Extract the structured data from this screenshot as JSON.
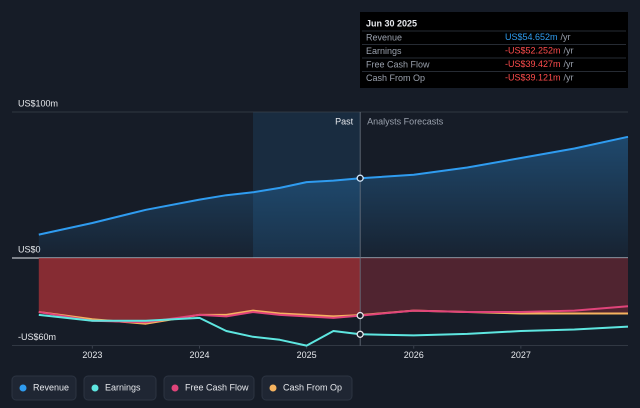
{
  "chart_data": {
    "type": "line",
    "x": [
      2022.5,
      2023,
      2023.5,
      2024,
      2024.25,
      2024.5,
      2024.75,
      2025,
      2025.25,
      2025.5,
      2026,
      2026.5,
      2027,
      2027.5,
      2028
    ],
    "series": [
      {
        "name": "Revenue",
        "color": "#2f9cf0",
        "values": [
          16,
          24,
          33,
          40,
          43,
          45,
          48,
          52,
          53,
          54.652,
          57,
          62,
          68.5,
          75,
          83
        ]
      },
      {
        "name": "Earnings",
        "color": "#5ee6e0",
        "values": [
          -39,
          -43,
          -43,
          -41,
          -50,
          -54,
          -56,
          -60,
          -50,
          -52.252,
          -53,
          -52,
          -50,
          -49,
          -47
        ]
      },
      {
        "name": "Free Cash Flow",
        "color": "#e0447a",
        "values": [
          -37,
          -43,
          -44,
          -39,
          -40,
          -37,
          -39,
          -40,
          -41,
          -39.427,
          -36,
          -37,
          -37,
          -36,
          -33
        ]
      },
      {
        "name": "Cash From Op",
        "color": "#f6b35f",
        "values": [
          -37,
          -42,
          -45,
          -39,
          -39,
          -36,
          -38,
          -39,
          -40,
          -39.121,
          -36,
          -37,
          -38,
          -38,
          -38
        ]
      }
    ],
    "xlim": [
      2022.25,
      2028
    ],
    "xticks": [
      2023,
      2024,
      2025,
      2026,
      2027
    ],
    "ylim": [
      -60,
      100
    ],
    "yticks": [
      {
        "value": 100,
        "label": "US$100m"
      },
      {
        "value": 0,
        "label": "US$0"
      },
      {
        "value": -60,
        "label": "-US$60m"
      }
    ],
    "grid": true,
    "past_label": "Past",
    "forecast_label": "Analysts Forecasts",
    "tooltip": {
      "title": "Jun 30 2025",
      "x": 2025.5,
      "items": [
        {
          "name": "Revenue",
          "value": 54.652,
          "label": "US$54.652m",
          "unit": "/yr"
        },
        {
          "name": "Earnings",
          "value": -52.252,
          "label": "-US$52.252m",
          "unit": "/yr"
        },
        {
          "name": "Free Cash Flow",
          "value": -39.427,
          "label": "-US$39.427m",
          "unit": "/yr"
        },
        {
          "name": "Cash From Op",
          "value": -39.121,
          "label": "-US$39.121m",
          "unit": "/yr"
        }
      ]
    }
  }
}
